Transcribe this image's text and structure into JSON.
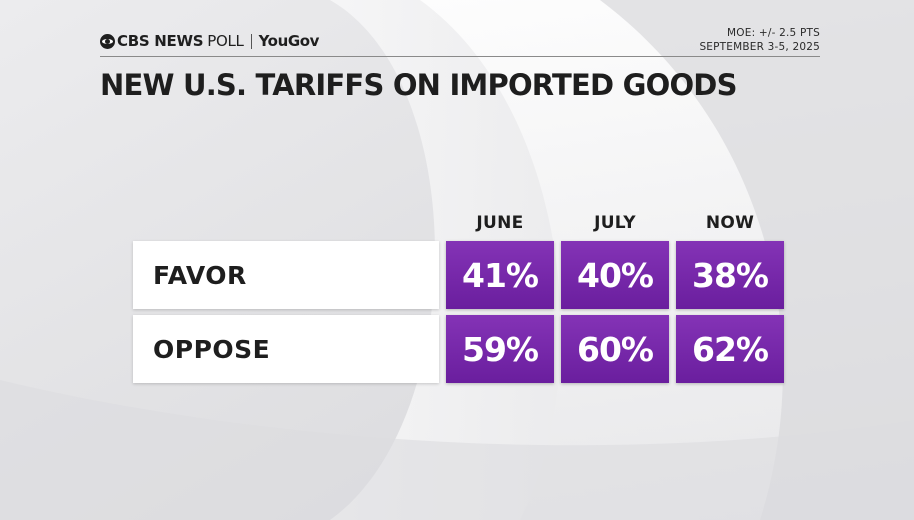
{
  "header": {
    "brand": "CBS NEWS",
    "poll": "POLL",
    "partner": "YouGov",
    "moe": "MOE: +/- 2.5 PTS",
    "dates": "SEPTEMBER 3-5, 2025"
  },
  "colors": {
    "cell_top": "#8433b6",
    "cell_bottom": "#6a1e9e",
    "text": "#1e1e1e",
    "label_bg": "#ffffff"
  },
  "chart_data": {
    "type": "table",
    "title": "NEW U.S. TARIFFS ON IMPORTED GOODS",
    "columns": [
      "JUNE",
      "JULY",
      "NOW"
    ],
    "rows": [
      {
        "label": "FAVOR",
        "values": [
          41,
          40,
          38
        ],
        "display": [
          "41%",
          "40%",
          "38%"
        ]
      },
      {
        "label": "OPPOSE",
        "values": [
          59,
          60,
          62
        ],
        "display": [
          "59%",
          "60%",
          "62%"
        ]
      }
    ],
    "unit": "%"
  }
}
